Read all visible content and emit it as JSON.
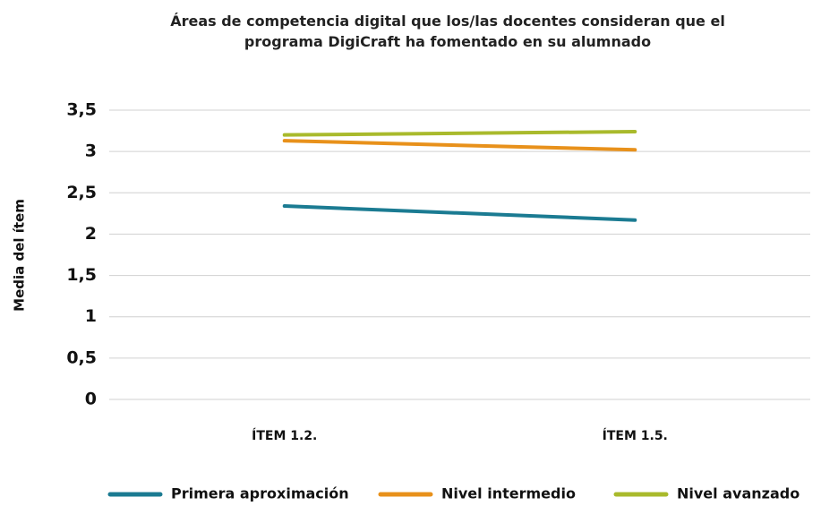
{
  "chart_data": {
    "type": "line",
    "title": "Áreas de competencia digital que los/las docentes consideran que el programa DigiCraft ha fomentado en su alumnado",
    "y_label": "Media del ítem",
    "categories": [
      "ÍTEM 1.2.",
      "ÍTEM 1.5."
    ],
    "series": [
      {
        "name": "Primera aproximación",
        "color": "#1b7b92",
        "values": [
          2.34,
          2.17
        ]
      },
      {
        "name": "Nivel intermedio",
        "color": "#e8911b",
        "values": [
          3.13,
          3.02
        ]
      },
      {
        "name": "Nivel avanzado",
        "color": "#a9ba2c",
        "values": [
          3.2,
          3.24
        ]
      }
    ],
    "ylim": [
      0,
      3.5
    ],
    "yticks": [
      0,
      {
        "value": 0.5,
        "label": "0,5"
      },
      1,
      {
        "value": 1.5,
        "label": "1,5"
      },
      2,
      {
        "value": 2.5,
        "label": "2,5"
      },
      3,
      {
        "value": 3.5,
        "label": "3,5"
      }
    ],
    "grid": true,
    "legend": "bottom"
  }
}
